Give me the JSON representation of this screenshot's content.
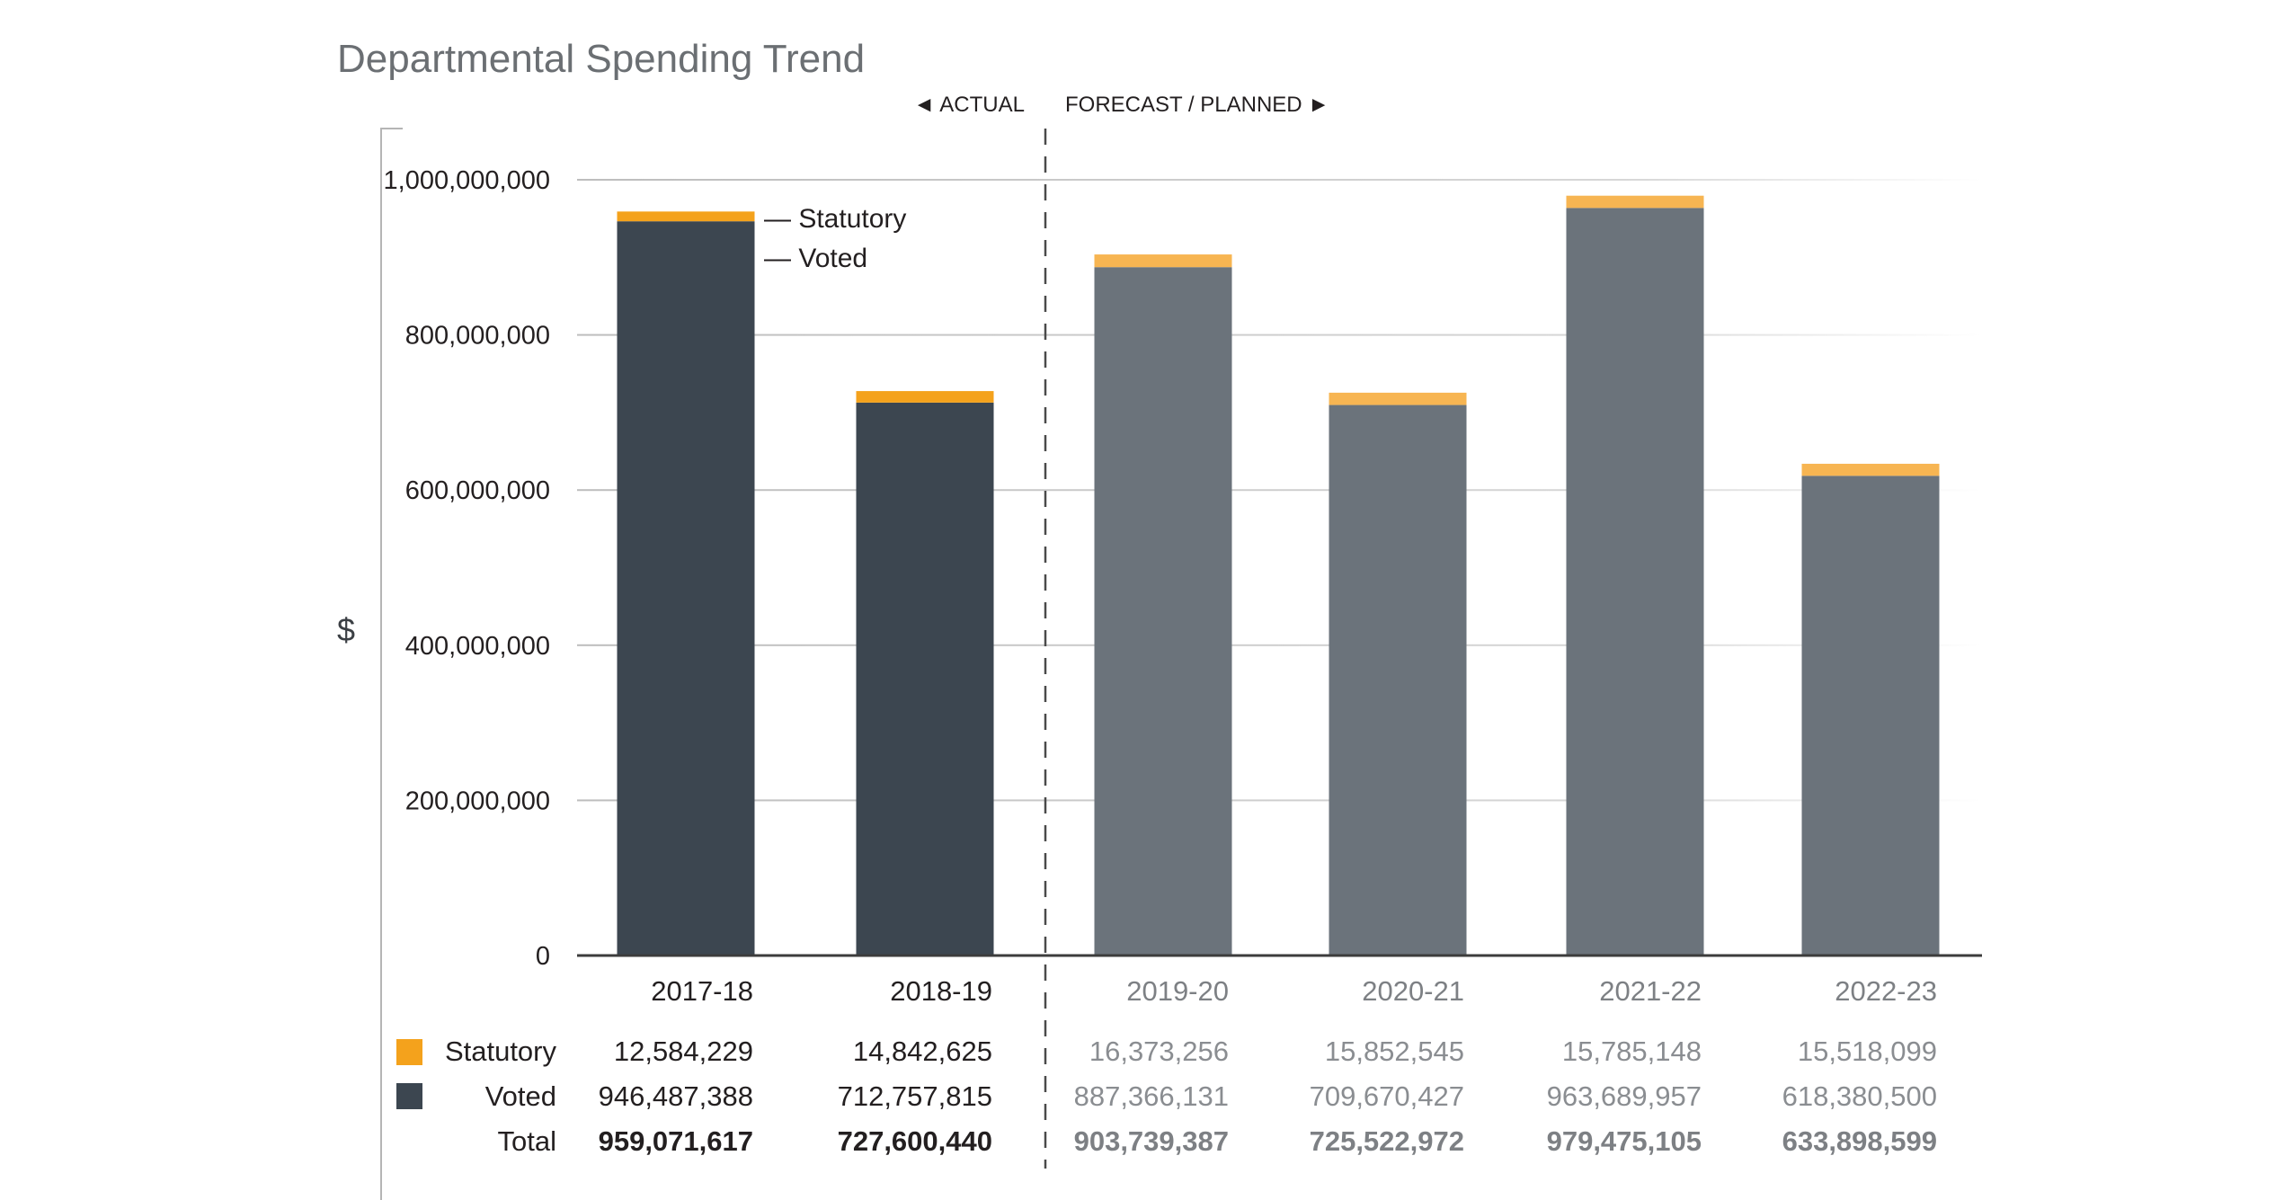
{
  "chart_data": {
    "type": "bar",
    "stacked": true,
    "title": "Departmental Spending Trend",
    "ylabel": "$",
    "xlabel": "",
    "ylim": [
      0,
      1000000000
    ],
    "yticks": [
      0,
      200000000,
      400000000,
      600000000,
      800000000,
      1000000000
    ],
    "ytick_labels": [
      "0",
      "200,000,000",
      "400,000,000",
      "600,000,000",
      "800,000,000",
      "1,000,000,000"
    ],
    "grid": true,
    "categories": [
      "2017-18",
      "2018-19",
      "2019-20",
      "2020-21",
      "2021-22",
      "2022-23"
    ],
    "period_types": [
      "actual",
      "actual",
      "forecast",
      "planned",
      "planned",
      "planned"
    ],
    "series": [
      {
        "name": "Voted",
        "values": [
          946487388,
          712757815,
          887366131,
          709670427,
          963689957,
          618380500
        ]
      },
      {
        "name": "Statutory",
        "values": [
          12584229,
          14842625,
          16373256,
          15852545,
          15785148,
          15518099
        ]
      }
    ],
    "totals": [
      959071617,
      727600440,
      903739387,
      725522972,
      979475105,
      633898599
    ],
    "annotations": {
      "actual_label": "◄ ACTUAL",
      "forecast_label": "FORECAST / PLANNED ►",
      "bar_legend": [
        "— Statutory",
        "— Voted"
      ]
    },
    "table": {
      "rows": [
        {
          "label": "Statutory",
          "values": [
            "12,584,229",
            "14,842,625",
            "16,373,256",
            "15,852,545",
            "15,785,148",
            "15,518,099"
          ]
        },
        {
          "label": "Voted",
          "values": [
            "946,487,388",
            "712,757,815",
            "887,366,131",
            "709,670,427",
            "963,689,957",
            "618,380,500"
          ]
        },
        {
          "label": "Total",
          "values": [
            "959,071,617",
            "727,600,440",
            "903,739,387",
            "725,522,972",
            "979,475,105",
            "633,898,599"
          ]
        }
      ]
    },
    "colors": {
      "statutory_actual": "#f4a21c",
      "statutory_forecast": "#f7b552",
      "voted_actual": "#3c4650",
      "voted_forecast": "#6b737b",
      "grid": "#c8c8c8",
      "axis": "#3c3c3c"
    }
  }
}
